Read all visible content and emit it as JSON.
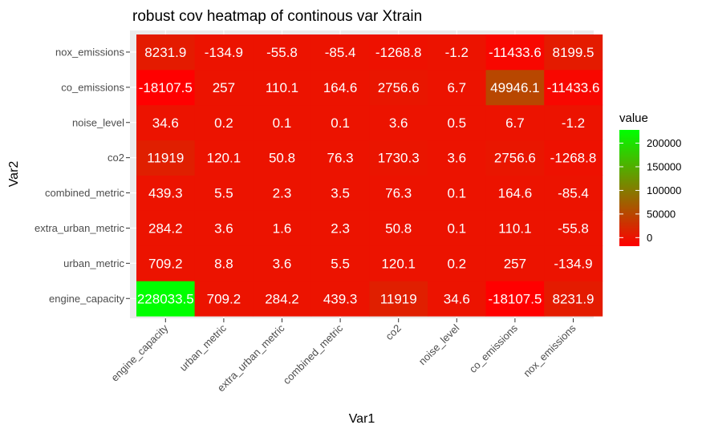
{
  "chart_data": {
    "type": "heatmap",
    "title": "robust cov heatmap of continous var Xtrain",
    "xlabel": "Var1",
    "ylabel": "Var2",
    "x_categories": [
      "engine_capacity",
      "urban_metric",
      "extra_urban_metric",
      "combined_metric",
      "co2",
      "noise_level",
      "co_emissions",
      "nox_emissions"
    ],
    "y_categories": [
      "engine_capacity",
      "urban_metric",
      "extra_urban_metric",
      "combined_metric",
      "co2",
      "noise_level",
      "co_emissions",
      "nox_emissions"
    ],
    "values": [
      [
        228033.5,
        709.2,
        284.2,
        439.3,
        11919,
        34.6,
        -18107.5,
        8231.9
      ],
      [
        709.2,
        8.8,
        3.6,
        5.5,
        120.1,
        0.2,
        257,
        -134.9
      ],
      [
        284.2,
        3.6,
        1.6,
        2.3,
        50.8,
        0.1,
        110.1,
        -55.8
      ],
      [
        439.3,
        5.5,
        2.3,
        3.5,
        76.3,
        0.1,
        164.6,
        -85.4
      ],
      [
        11919,
        120.1,
        50.8,
        76.3,
        1730.3,
        3.6,
        2756.6,
        -1268.8
      ],
      [
        34.6,
        0.2,
        0.1,
        0.1,
        3.6,
        0.5,
        6.7,
        -1.2
      ],
      [
        -18107.5,
        257,
        110.1,
        164.6,
        2756.6,
        6.7,
        49946.1,
        -11433.6
      ],
      [
        8231.9,
        -134.9,
        -55.8,
        -85.4,
        -1268.8,
        -1.2,
        -11433.6,
        8199.5
      ]
    ],
    "value_labels": [
      [
        "228033.5",
        "709.2",
        "284.2",
        "439.3",
        "11919",
        "34.6",
        "-18107.5",
        "8231.9"
      ],
      [
        "709.2",
        "8.8",
        "3.6",
        "5.5",
        "120.1",
        "0.2",
        "257",
        "-134.9"
      ],
      [
        "284.2",
        "3.6",
        "1.6",
        "2.3",
        "50.8",
        "0.1",
        "110.1",
        "-55.8"
      ],
      [
        "439.3",
        "5.5",
        "2.3",
        "3.5",
        "76.3",
        "0.1",
        "164.6",
        "-85.4"
      ],
      [
        "11919",
        "120.1",
        "50.8",
        "76.3",
        "1730.3",
        "3.6",
        "2756.6",
        "-1268.8"
      ],
      [
        "34.6",
        "0.2",
        "0.1",
        "0.1",
        "3.6",
        "0.5",
        "6.7",
        "-1.2"
      ],
      [
        "-18107.5",
        "257",
        "110.1",
        "164.6",
        "2756.6",
        "6.7",
        "49946.1",
        "-11433.6"
      ],
      [
        "8231.9",
        "-134.9",
        "-55.8",
        "-85.4",
        "-1268.8",
        "-1.2",
        "-11433.6",
        "8199.5"
      ]
    ],
    "color_scale": {
      "low": "#ff0000",
      "high": "#00ff00",
      "domain": [
        -18107.5,
        228033.5
      ]
    },
    "legend": {
      "title": "value",
      "position": "right",
      "ticks": [
        0,
        50000,
        100000,
        150000,
        200000
      ],
      "tick_labels": [
        "0",
        "50000",
        "100000",
        "150000",
        "200000"
      ]
    },
    "panel_background": "#ebebeb",
    "grid": true
  }
}
